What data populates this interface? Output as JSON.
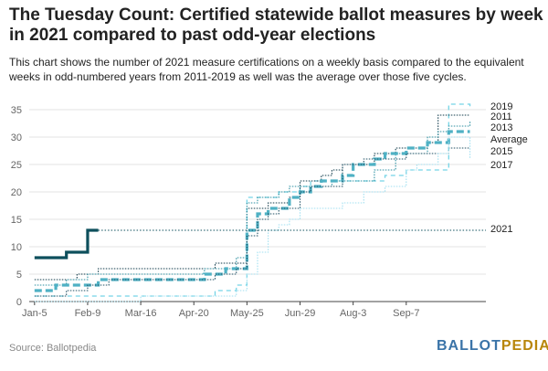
{
  "header": {
    "title": "The Tuesday Count: Certified statewide ballot measures by week in 2021 compared to past odd-year elections",
    "subtitle": "This chart shows the number of 2021 measure certifications on a weekly basis compared to the equivalent weeks in odd-numbered years from 2011-2019 as well was the average over those five cycles."
  },
  "footer": {
    "source": "Source: Ballotpedia",
    "logo_part1": "BALLOT",
    "logo_part2": "PEDIA"
  },
  "chart_data": {
    "type": "line",
    "title": "The Tuesday Count: Certified statewide ballot measures by week in 2021 compared to past odd-year elections",
    "xlabel": "",
    "ylabel": "",
    "x_tick_labels": [
      "Jan-5",
      "Feb-9",
      "Mar-16",
      "Apr-20",
      "May-25",
      "Jun-29",
      "Aug-3",
      "Sep-7"
    ],
    "x_tick_weeks": [
      0,
      5,
      10,
      15,
      20,
      25,
      30,
      35
    ],
    "y_ticks": [
      0,
      5,
      10,
      15,
      20,
      25,
      30,
      35
    ],
    "ylim": [
      0,
      37
    ],
    "xlim": [
      -0.5,
      42.5
    ],
    "legend_placement": "right, direct labels",
    "series": [
      {
        "name": "2019",
        "color": "#74d4e6",
        "style": "dashed",
        "x": [
          0,
          1,
          2,
          3,
          4,
          5,
          6,
          7,
          8,
          9,
          10,
          11,
          12,
          13,
          14,
          15,
          16,
          17,
          18,
          19,
          20,
          21,
          22,
          23,
          24,
          25,
          26,
          27,
          28,
          29,
          30,
          31,
          32,
          33,
          34,
          35,
          36,
          37,
          38,
          39,
          40,
          41
        ],
        "values": [
          1,
          1,
          1,
          1,
          1,
          1,
          1,
          1,
          1,
          1,
          1,
          1,
          1,
          1,
          1,
          1,
          1,
          2,
          2,
          3,
          19,
          19,
          19,
          20,
          20,
          21,
          22,
          22,
          22,
          22,
          22,
          22,
          22,
          23,
          23,
          24,
          24,
          24,
          24,
          36,
          36,
          35
        ]
      },
      {
        "name": "2011",
        "color": "#0f3a4a",
        "style": "dotted",
        "x": [
          0,
          1,
          2,
          3,
          4,
          5,
          6,
          7,
          8,
          9,
          10,
          11,
          12,
          13,
          14,
          15,
          16,
          17,
          18,
          19,
          20,
          21,
          22,
          23,
          24,
          25,
          26,
          27,
          28,
          29,
          30,
          31,
          32,
          33,
          34,
          35,
          36,
          37,
          38,
          39,
          40,
          41
        ],
        "values": [
          4,
          4,
          4,
          4,
          5,
          5,
          6,
          6,
          6,
          6,
          6,
          6,
          6,
          6,
          6,
          6,
          6,
          7,
          7,
          7,
          17,
          17,
          18,
          18,
          19,
          22,
          22,
          23,
          24,
          25,
          25,
          25,
          27,
          27,
          28,
          28,
          28,
          29,
          34,
          34,
          34,
          34
        ]
      },
      {
        "name": "2013",
        "color": "#2a8fa0",
        "style": "dotted",
        "x": [
          0,
          1,
          2,
          3,
          4,
          5,
          6,
          7,
          8,
          9,
          10,
          11,
          12,
          13,
          14,
          15,
          16,
          17,
          18,
          19,
          20,
          21,
          22,
          23,
          24,
          25,
          26,
          27,
          28,
          29,
          30,
          31,
          32,
          33,
          34,
          35,
          36,
          37,
          38,
          39,
          40,
          41
        ],
        "values": [
          3,
          3,
          3,
          4,
          4,
          5,
          5,
          5,
          5,
          5,
          5,
          5,
          5,
          5,
          5,
          5,
          6,
          6,
          6,
          8,
          18,
          19,
          19,
          20,
          21,
          21,
          21,
          21,
          22,
          22,
          22,
          22,
          24,
          24,
          27,
          27,
          27,
          30,
          31,
          32,
          32,
          33
        ]
      },
      {
        "name": "Average",
        "color": "#4fb1c4",
        "style": "dashed-thick",
        "x": [
          0,
          1,
          2,
          3,
          4,
          5,
          6,
          7,
          8,
          9,
          10,
          11,
          12,
          13,
          14,
          15,
          16,
          17,
          18,
          19,
          20,
          21,
          22,
          23,
          24,
          25,
          26,
          27,
          28,
          29,
          30,
          31,
          32,
          33,
          34,
          35,
          36,
          37,
          38,
          39,
          40,
          41
        ],
        "values": [
          2,
          2,
          3,
          3,
          3,
          3,
          4,
          4,
          4,
          4,
          4,
          4,
          4,
          4,
          4,
          4,
          5,
          5,
          6,
          6,
          13,
          16,
          17,
          17,
          19,
          20,
          21,
          22,
          22,
          23,
          25,
          25,
          26,
          27,
          27,
          28,
          28,
          29,
          29,
          31,
          31,
          31
        ]
      },
      {
        "name": "2015",
        "color": "#1d4f63",
        "style": "dotted",
        "x": [
          0,
          1,
          2,
          3,
          4,
          5,
          6,
          7,
          8,
          9,
          10,
          11,
          12,
          13,
          14,
          15,
          16,
          17,
          18,
          19,
          20,
          21,
          22,
          23,
          24,
          25,
          26,
          27,
          28,
          29,
          30,
          31,
          32,
          33,
          34,
          35,
          36,
          37,
          38,
          39,
          40,
          41
        ],
        "values": [
          1,
          1,
          1,
          2,
          2,
          3,
          3,
          4,
          4,
          4,
          4,
          4,
          4,
          4,
          4,
          4,
          4,
          5,
          5,
          6,
          12,
          15,
          16,
          17,
          17,
          20,
          21,
          21,
          21,
          25,
          25,
          26,
          26,
          26,
          26,
          27,
          27,
          27,
          27,
          28,
          28,
          28
        ]
      },
      {
        "name": "2017",
        "color": "#9fdff0",
        "style": "dotted",
        "x": [
          0,
          1,
          2,
          3,
          4,
          5,
          6,
          7,
          8,
          9,
          10,
          11,
          12,
          13,
          14,
          15,
          16,
          17,
          18,
          19,
          20,
          21,
          22,
          23,
          24,
          25,
          26,
          27,
          28,
          29,
          30,
          31,
          32,
          33,
          34,
          35,
          36,
          37,
          38,
          39,
          40,
          41
        ],
        "values": [
          0,
          0,
          0,
          0,
          0,
          0,
          0,
          0,
          0,
          0,
          1,
          1,
          1,
          1,
          1,
          1,
          1,
          1,
          1,
          2,
          5,
          9,
          13,
          14,
          15,
          17,
          17,
          17,
          17,
          18,
          18,
          20,
          20,
          21,
          21,
          24,
          25,
          25,
          27,
          30,
          30,
          26
        ]
      },
      {
        "name": "2021",
        "color": "#0d4f5c",
        "style": "solid",
        "x": [
          0,
          1,
          2,
          3,
          4,
          5,
          6
        ],
        "values": [
          8,
          8,
          8,
          9,
          9,
          13,
          13
        ],
        "extension_value": 13
      }
    ]
  },
  "colors": {
    "grid": "#e3e3e3",
    "axis": "#444444",
    "logo_blue": "#3b74a8",
    "logo_gold": "#b8860b"
  }
}
